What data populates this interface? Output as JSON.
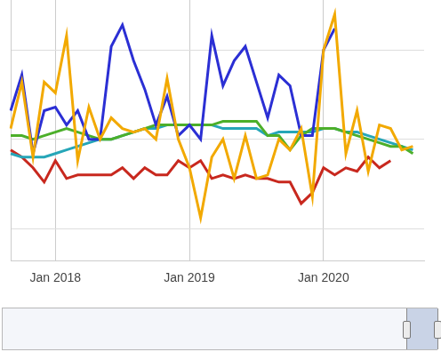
{
  "chart_data": {
    "type": "line",
    "categories": [
      null,
      null,
      null,
      null,
      "Jan 2018",
      null,
      null,
      null,
      null,
      null,
      null,
      null,
      null,
      null,
      null,
      null,
      "Jan 2019",
      null,
      null,
      null,
      null,
      null,
      null,
      null,
      null,
      null,
      null,
      null,
      "Jan 2020",
      null,
      null,
      null,
      null,
      null,
      null,
      null,
      null,
      null
    ],
    "series": [
      {
        "color": "#f2a900",
        "values": [
          53,
          66,
          45,
          66,
          63,
          79,
          44,
          59,
          50,
          56,
          53,
          52,
          53,
          50,
          67,
          50,
          42,
          28,
          45,
          50,
          39,
          51,
          39,
          40,
          50,
          47,
          53,
          34,
          75,
          85,
          46,
          58,
          41,
          54,
          53,
          47,
          48,
          null
        ]
      },
      {
        "color": "#2b2fd4",
        "values": [
          58,
          68,
          46,
          58,
          59,
          54,
          58,
          50,
          50,
          76,
          82,
          72,
          64,
          54,
          62,
          51,
          54,
          50,
          79,
          65,
          72,
          76,
          66,
          56,
          68,
          65,
          51,
          51,
          75,
          81,
          null,
          null,
          null,
          null,
          null,
          null,
          null,
          null
        ]
      },
      {
        "color": "#4caf2a",
        "values": [
          51,
          51,
          50,
          51,
          52,
          53,
          52,
          51,
          50,
          50,
          51,
          52,
          53,
          54,
          54,
          54,
          54,
          54,
          54,
          55,
          55,
          55,
          55,
          51,
          51,
          47,
          51,
          53,
          53,
          53,
          52,
          51,
          50,
          49,
          48,
          48,
          46,
          null
        ]
      },
      {
        "color": "#26a6b8",
        "values": [
          46,
          45,
          45,
          45,
          46,
          47,
          48,
          49,
          50,
          50,
          51,
          52,
          53,
          53,
          54,
          54,
          54,
          54,
          54,
          53,
          53,
          53,
          53,
          51,
          52,
          52,
          52,
          52,
          53,
          53,
          52,
          52,
          51,
          50,
          49,
          48,
          47,
          null
        ]
      },
      {
        "color": "#c8281e",
        "values": [
          47,
          45,
          42,
          38,
          44,
          39,
          40,
          40,
          40,
          40,
          42,
          39,
          42,
          40,
          40,
          44,
          42,
          44,
          39,
          40,
          39,
          40,
          39,
          39,
          38,
          38,
          32,
          35,
          42,
          40,
          42,
          41,
          45,
          42,
          44,
          null,
          null,
          null
        ]
      }
    ],
    "ylim": [
      16,
      89
    ],
    "yticks": [
      25,
      50,
      75
    ],
    "grid": true,
    "tick_labels": "x"
  }
}
